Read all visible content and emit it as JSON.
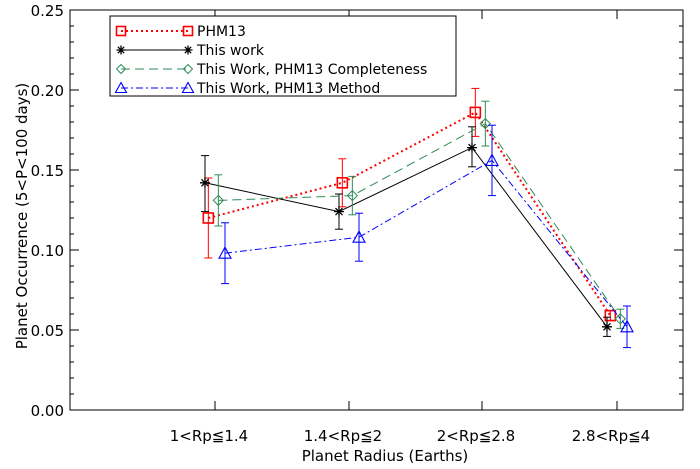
{
  "chart_data": {
    "type": "line",
    "xlabel": "Planet Radius (Earths)",
    "ylabel": "Planet Occurrence (5<P<100 days)",
    "categories": [
      "1<Rp≦1.4",
      "1.4<Rp≦2",
      "2<Rp≦2.8",
      "2.8<Rp≦4"
    ],
    "ylim": [
      0,
      0.25
    ],
    "yticks": [
      "0.00",
      "0.05",
      "0.10",
      "0.15",
      "0.20",
      "0.25"
    ],
    "grid": false,
    "legend_position": "top-left",
    "series": [
      {
        "name": "PHM13",
        "color": "#ff0000",
        "marker": "square",
        "dash": "dotted",
        "values": [
          0.12,
          0.142,
          0.186,
          0.059
        ],
        "err_low": [
          0.025,
          0.015,
          0.015,
          0.003
        ],
        "err_high": [
          0.025,
          0.015,
          0.015,
          0.003
        ],
        "x_offset": -0.1
      },
      {
        "name": "This work",
        "color": "#000000",
        "marker": "asterisk",
        "dash": "solid",
        "values": [
          0.142,
          0.124,
          0.164,
          0.052
        ],
        "err_low": [
          0.018,
          0.011,
          0.012,
          0.006
        ],
        "err_high": [
          0.017,
          0.011,
          0.013,
          0.006
        ],
        "x_offset": -0.15
      },
      {
        "name": "This Work, PHM13 Completeness",
        "color": "#2e8b57",
        "marker": "diamond",
        "dash": "dashed",
        "values": [
          0.131,
          0.134,
          0.179,
          0.057
        ],
        "err_low": [
          0.016,
          0.012,
          0.014,
          0.006
        ],
        "err_high": [
          0.016,
          0.012,
          0.014,
          0.006
        ],
        "x_offset": 0.05
      },
      {
        "name": "This Work, PHM13 Method",
        "color": "#0000ff",
        "marker": "triangle",
        "dash": "dashdot",
        "values": [
          0.098,
          0.108,
          0.156,
          0.052
        ],
        "err_low": [
          0.019,
          0.015,
          0.022,
          0.013
        ],
        "err_high": [
          0.019,
          0.015,
          0.022,
          0.013
        ],
        "x_offset": 0.15
      }
    ]
  }
}
